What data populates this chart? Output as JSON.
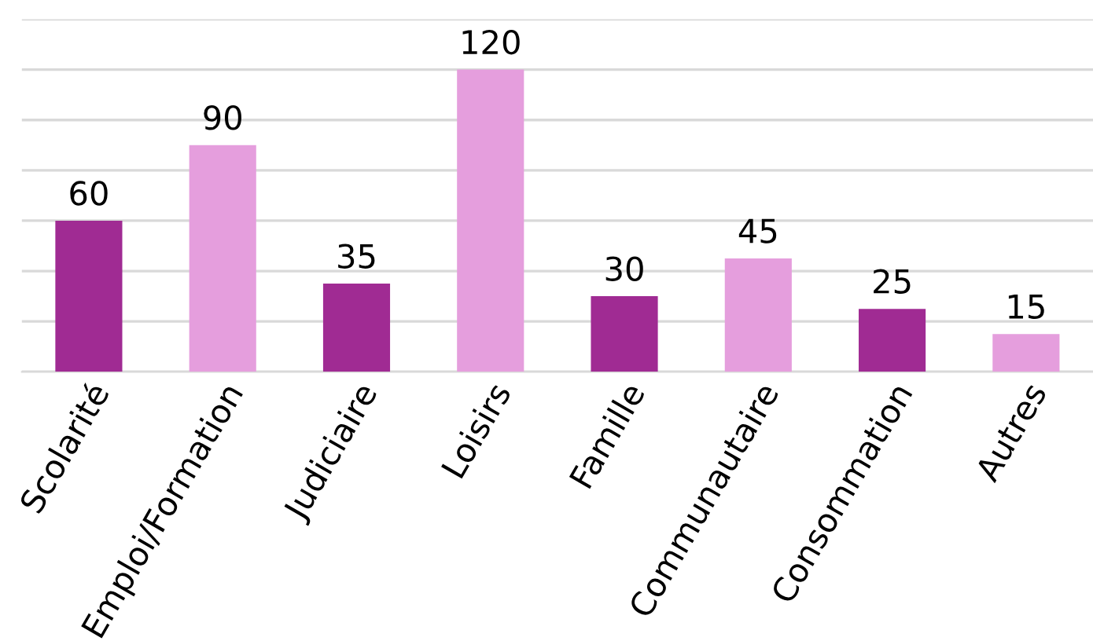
{
  "chart_data": {
    "type": "bar",
    "categories": [
      "Scolarité",
      "Emploi/Formation",
      "Judiciaire",
      "Loisirs",
      "Famille",
      "Communautaire",
      "Consommation",
      "Autres"
    ],
    "values": [
      60,
      90,
      35,
      120,
      30,
      45,
      25,
      15
    ],
    "colors": [
      "#a02b93",
      "#e59edd",
      "#a02b93",
      "#e59edd",
      "#a02b93",
      "#e59edd",
      "#a02b93",
      "#e59edd"
    ],
    "ylim": [
      0,
      140
    ],
    "yticks": [
      {
        "value": 0,
        "label": null
      },
      {
        "value": 20,
        "label": null
      },
      {
        "value": 40,
        "label": null
      },
      {
        "value": 60,
        "label": null
      },
      {
        "value": 80,
        "label": null
      },
      {
        "value": 100,
        "label": null
      },
      {
        "value": 120,
        "label": null
      },
      {
        "value": 140,
        "label": null
      }
    ],
    "grid": "y",
    "data_labels": true,
    "tick_labels": "x"
  }
}
